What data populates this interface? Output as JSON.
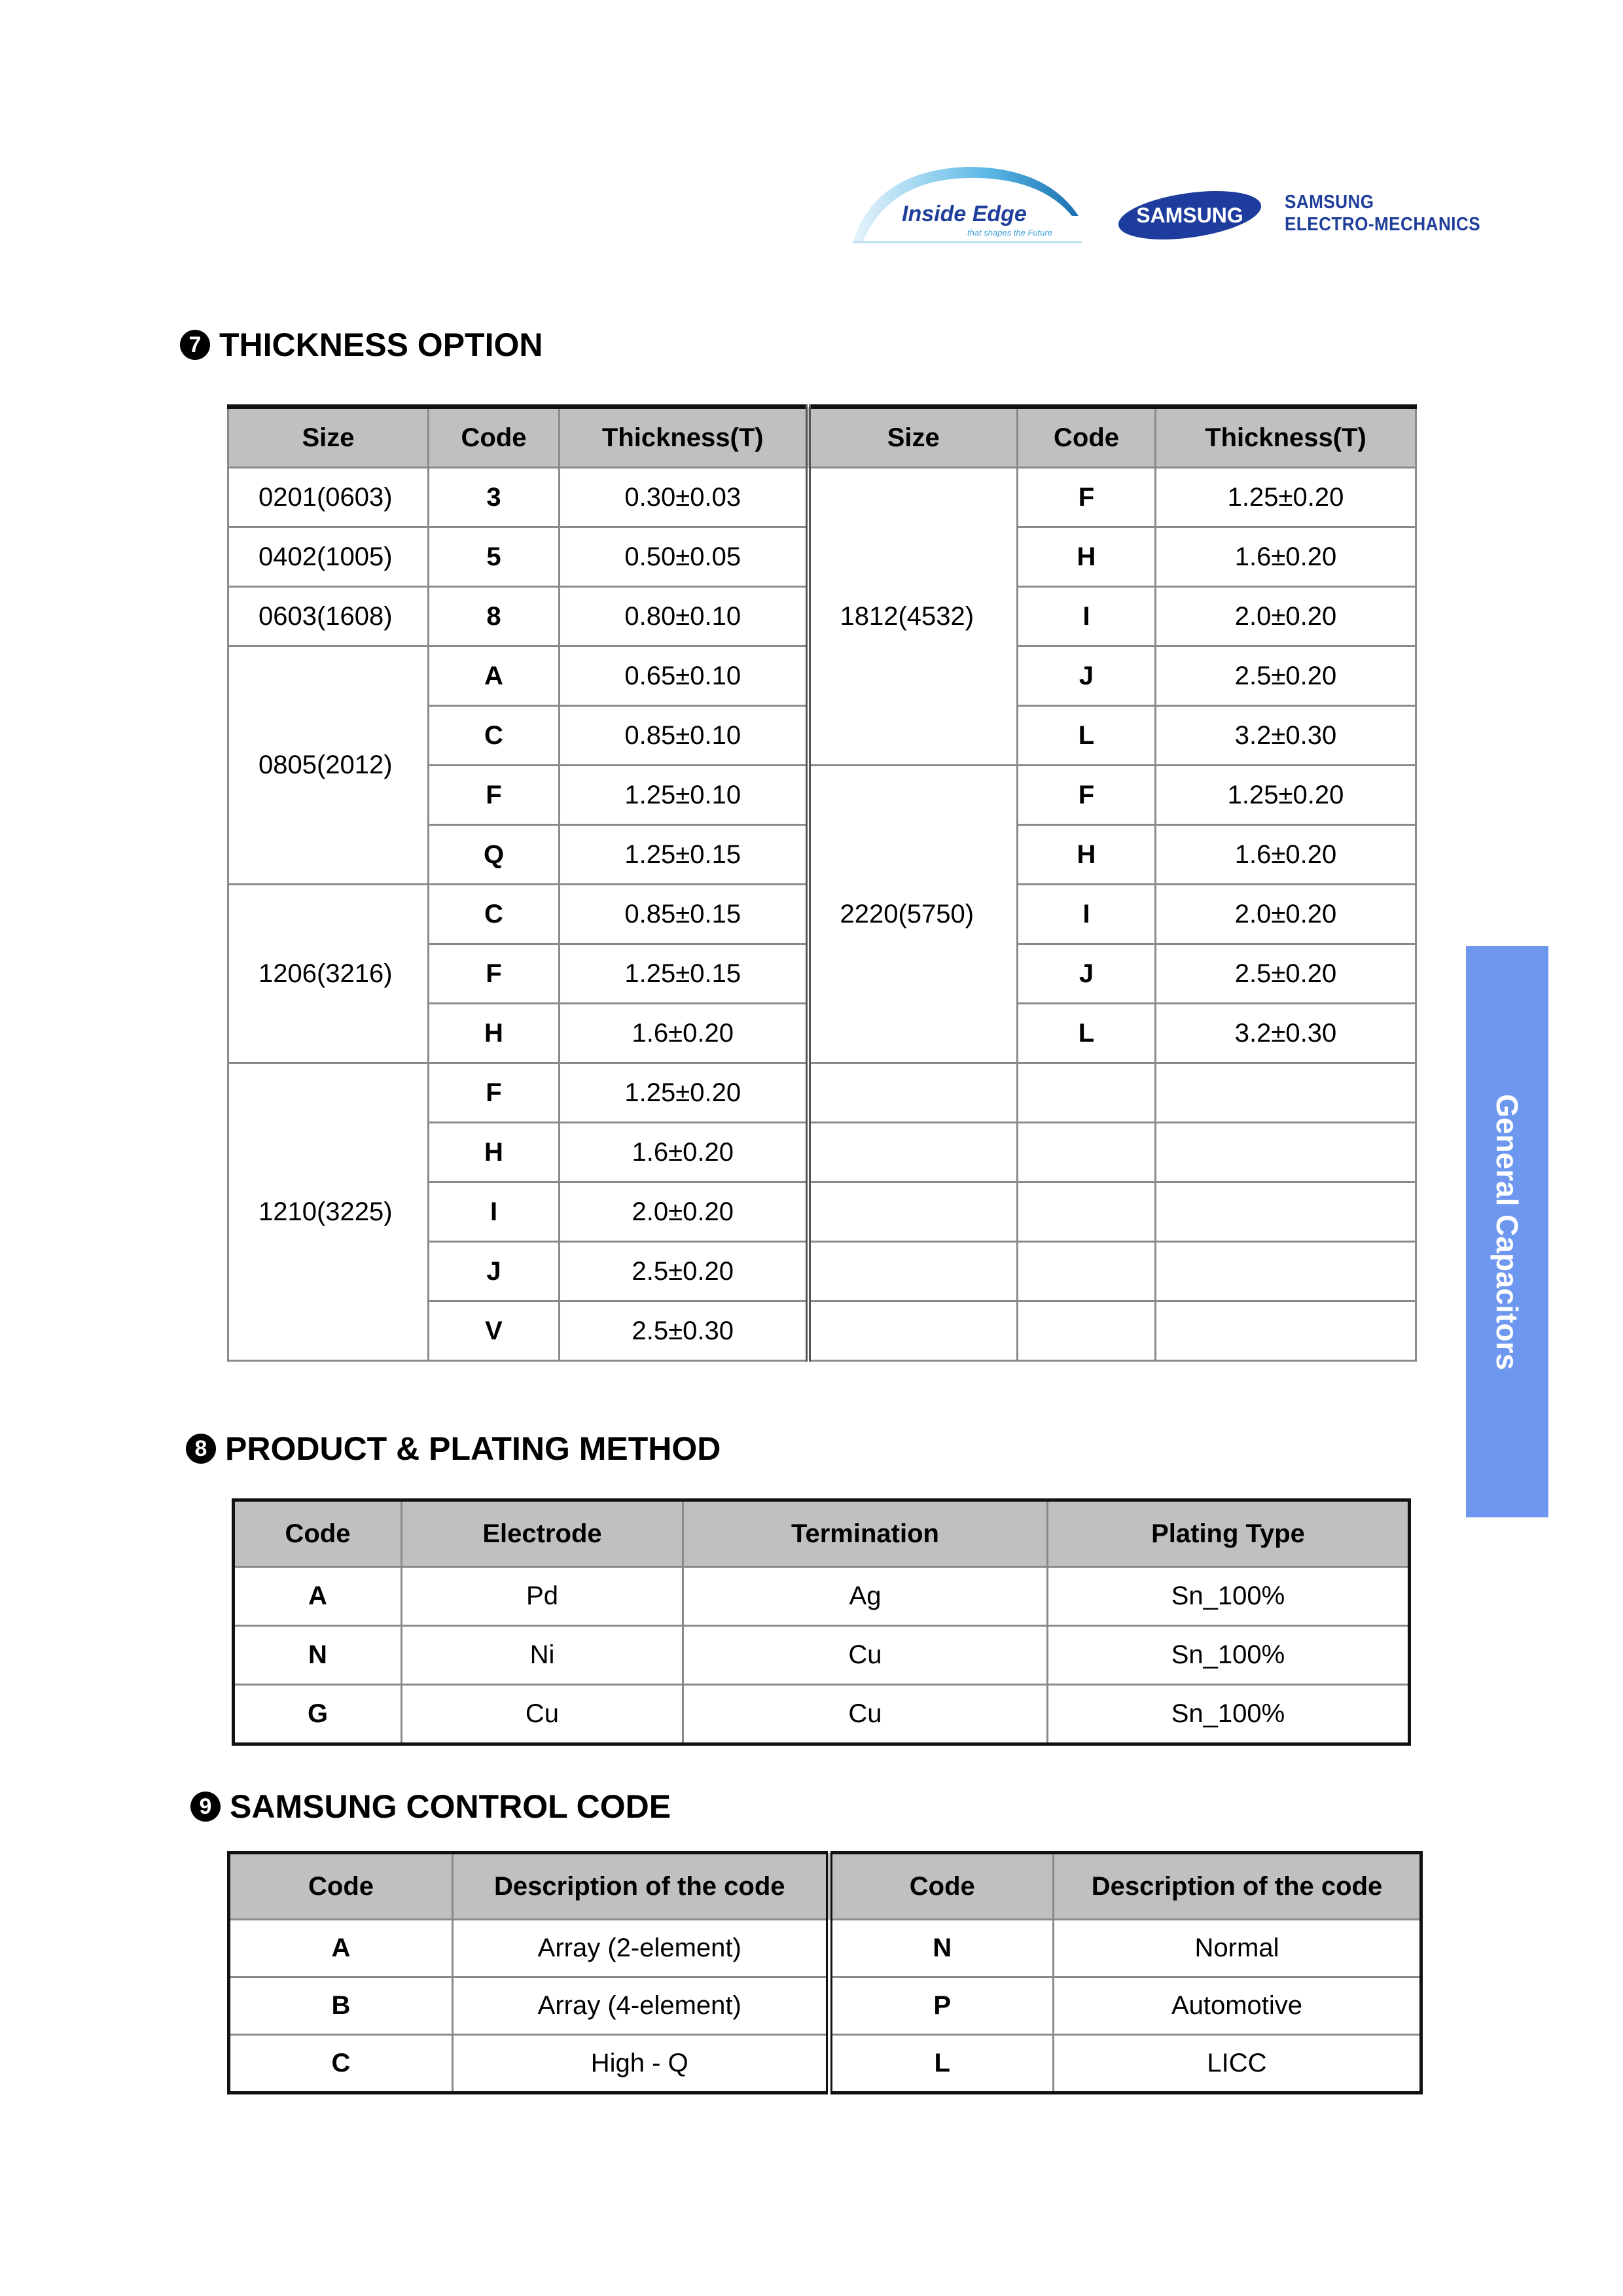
{
  "header": {
    "logo_slogan": "The 1nside Edge that shapes the Future",
    "samsung_logo": "SAMSUNG",
    "company_line1": "SAMSUNG",
    "company_line2": "ELECTRO-MECHANICS"
  },
  "side_tab": {
    "label": "General Capacitors",
    "color": "#6e97ef"
  },
  "thickness": {
    "number": "7",
    "title": "THICKNESS OPTION",
    "headers": [
      "Size",
      "Code",
      "Thickness(T)",
      "Size",
      "Code",
      "Thickness(T)"
    ],
    "left_groups": [
      {
        "size": "0201(0603)",
        "items": [
          {
            "code": "3",
            "t": "0.30±0.03"
          }
        ]
      },
      {
        "size": "0402(1005)",
        "items": [
          {
            "code": "5",
            "t": "0.50±0.05"
          }
        ]
      },
      {
        "size": "0603(1608)",
        "items": [
          {
            "code": "8",
            "t": "0.80±0.10"
          }
        ]
      },
      {
        "size": "0805(2012)",
        "items": [
          {
            "code": "A",
            "t": "0.65±0.10"
          },
          {
            "code": "C",
            "t": "0.85±0.10"
          },
          {
            "code": "F",
            "t": "1.25±0.10"
          },
          {
            "code": "Q",
            "t": "1.25±0.15"
          }
        ]
      },
      {
        "size": "1206(3216)",
        "items": [
          {
            "code": "C",
            "t": "0.85±0.15"
          },
          {
            "code": "F",
            "t": "1.25±0.15"
          },
          {
            "code": "H",
            "t": "1.6±0.20"
          }
        ]
      },
      {
        "size": "1210(3225)",
        "items": [
          {
            "code": "F",
            "t": "1.25±0.20"
          },
          {
            "code": "H",
            "t": "1.6±0.20"
          },
          {
            "code": "I",
            "t": "2.0±0.20"
          },
          {
            "code": "J",
            "t": "2.5±0.20"
          },
          {
            "code": "V",
            "t": "2.5±0.30"
          }
        ]
      }
    ],
    "right_groups": [
      {
        "size": "1812(4532)",
        "items": [
          {
            "code": "F",
            "t": "1.25±0.20"
          },
          {
            "code": "H",
            "t": "1.6±0.20"
          },
          {
            "code": "I",
            "t": "2.0±0.20"
          },
          {
            "code": "J",
            "t": "2.5±0.20"
          },
          {
            "code": "L",
            "t": "3.2±0.30"
          }
        ]
      },
      {
        "size": "2220(5750)",
        "items": [
          {
            "code": "F",
            "t": "1.25±0.20"
          },
          {
            "code": "H",
            "t": "1.6±0.20"
          },
          {
            "code": "I",
            "t": "2.0±0.20"
          },
          {
            "code": "J",
            "t": "2.5±0.20"
          },
          {
            "code": "L",
            "t": "3.2±0.30"
          }
        ]
      }
    ]
  },
  "plating": {
    "number": "8",
    "title": "PRODUCT & PLATING METHOD",
    "headers": [
      "Code",
      "Electrode",
      "Termination",
      "Plating  Type"
    ],
    "rows": [
      [
        "A",
        "Pd",
        "Ag",
        "Sn_100%"
      ],
      [
        "N",
        "Ni",
        "Cu",
        "Sn_100%"
      ],
      [
        "G",
        "Cu",
        "Cu",
        "Sn_100%"
      ]
    ]
  },
  "control": {
    "number": "9",
    "title": "SAMSUNG CONTROL CODE",
    "headers": [
      "Code",
      "Description  of  the  code",
      "Code",
      "Description  of  the  code"
    ],
    "rows": [
      [
        "A",
        "Array  (2-element)",
        "N",
        "Normal"
      ],
      [
        "B",
        "Array  (4-element)",
        "P",
        "Automotive"
      ],
      [
        "C",
        "High  -  Q",
        "L",
        "LICC"
      ]
    ]
  }
}
